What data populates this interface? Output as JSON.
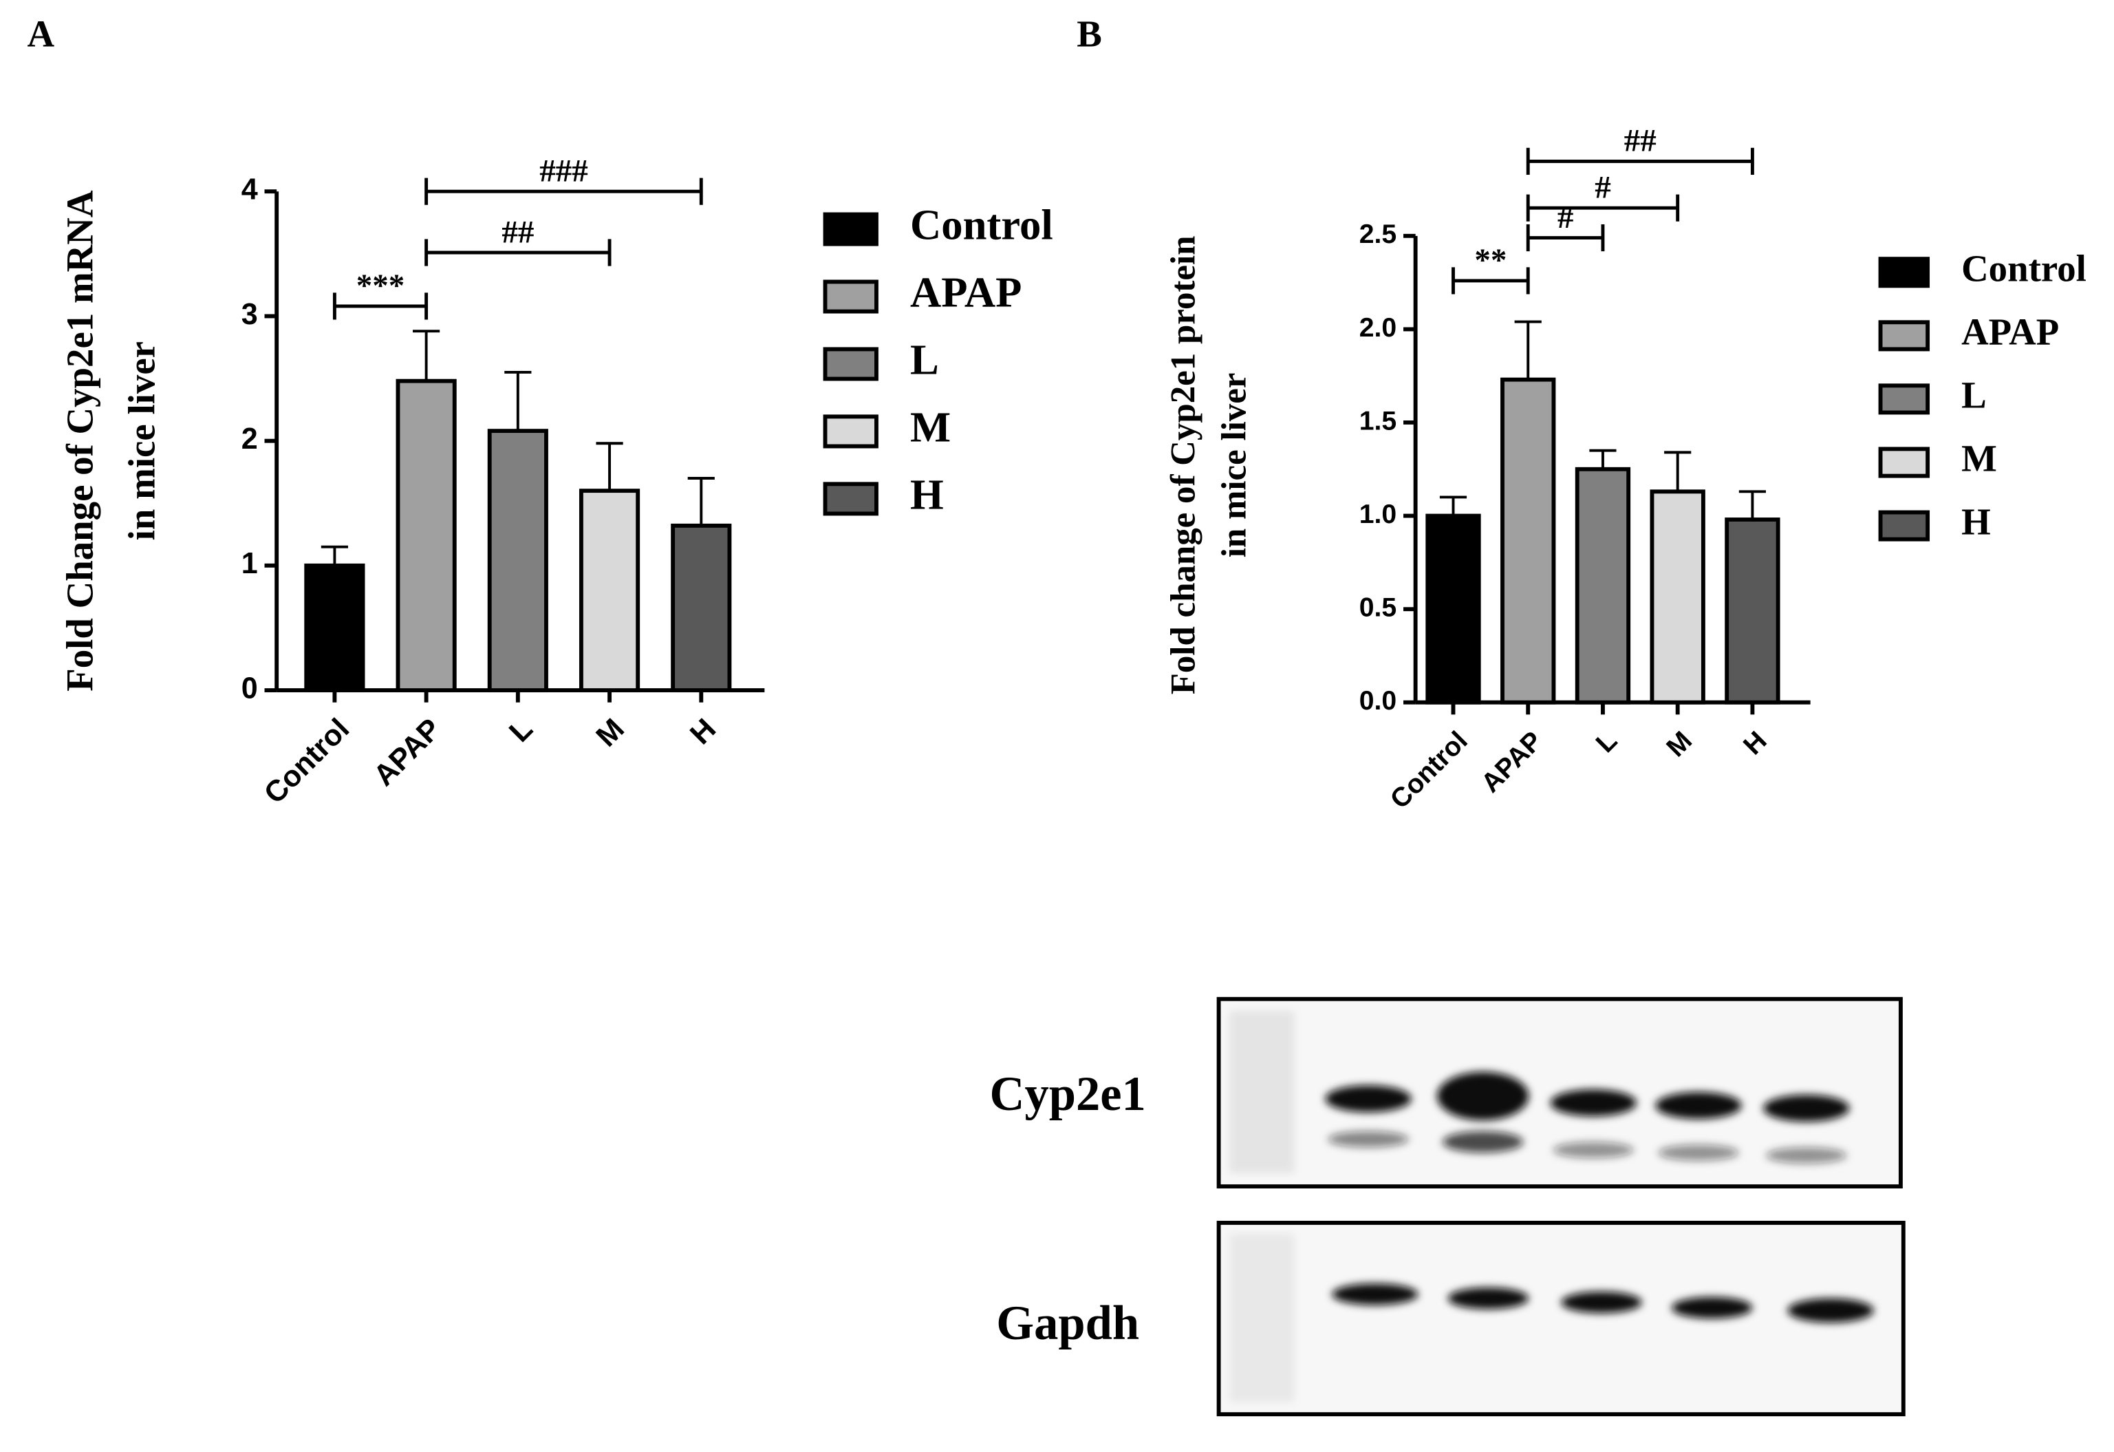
{
  "chart_data": [
    {
      "type": "bar",
      "panel": "A",
      "y_label": [
        "Fold Change of Cyp2e1 mRNA",
        "in mice liver"
      ],
      "categories": [
        "Control",
        "APAP",
        "L",
        "M",
        "H"
      ],
      "values": [
        1.0,
        2.48,
        2.08,
        1.6,
        1.32
      ],
      "errors": [
        0.15,
        0.4,
        0.47,
        0.38,
        0.38
      ],
      "colors": [
        "#000000",
        "#a0a0a0",
        "#808080",
        "#d9d9d9",
        "#595959"
      ],
      "ylim": [
        0,
        4
      ],
      "yticks": [
        0,
        1,
        2,
        3,
        4
      ],
      "annotations": [
        {
          "text": "***",
          "from": "Control",
          "to": "APAP",
          "y": 3.08
        },
        {
          "text": "##",
          "from": "APAP",
          "to": "M",
          "y": 3.51
        },
        {
          "text": "###",
          "from": "APAP",
          "to": "H",
          "y": 4.0
        }
      ]
    },
    {
      "type": "bar",
      "panel": "B",
      "y_label": [
        "Fold change of Cyp2e1 protein",
        "in mice liver"
      ],
      "categories": [
        "Control",
        "APAP",
        "L",
        "M",
        "H"
      ],
      "values": [
        1.0,
        1.73,
        1.25,
        1.13,
        0.98
      ],
      "errors": [
        0.1,
        0.31,
        0.1,
        0.21,
        0.15
      ],
      "colors": [
        "#000000",
        "#a0a0a0",
        "#808080",
        "#d9d9d9",
        "#595959"
      ],
      "ylim": [
        0,
        2.5
      ],
      "yticks": [
        {
          "value": 0,
          "label": "0.0"
        },
        0.5,
        {
          "value": 1,
          "label": "1.0"
        },
        1.5,
        {
          "value": 2,
          "label": "2.0"
        },
        2.5
      ],
      "annotations": [
        {
          "text": "**",
          "from": "Control",
          "to": "APAP",
          "y": 2.26
        },
        {
          "text": "#",
          "from": "APAP",
          "to": "L",
          "y": 2.49
        },
        {
          "text": "#",
          "from": "APAP",
          "to": "M",
          "y": 2.65
        },
        {
          "text": "##",
          "from": "APAP",
          "to": "H",
          "y": 2.9
        }
      ]
    }
  ],
  "blot": {
    "rows": [
      "Cyp2e1",
      "Gapdh"
    ]
  }
}
